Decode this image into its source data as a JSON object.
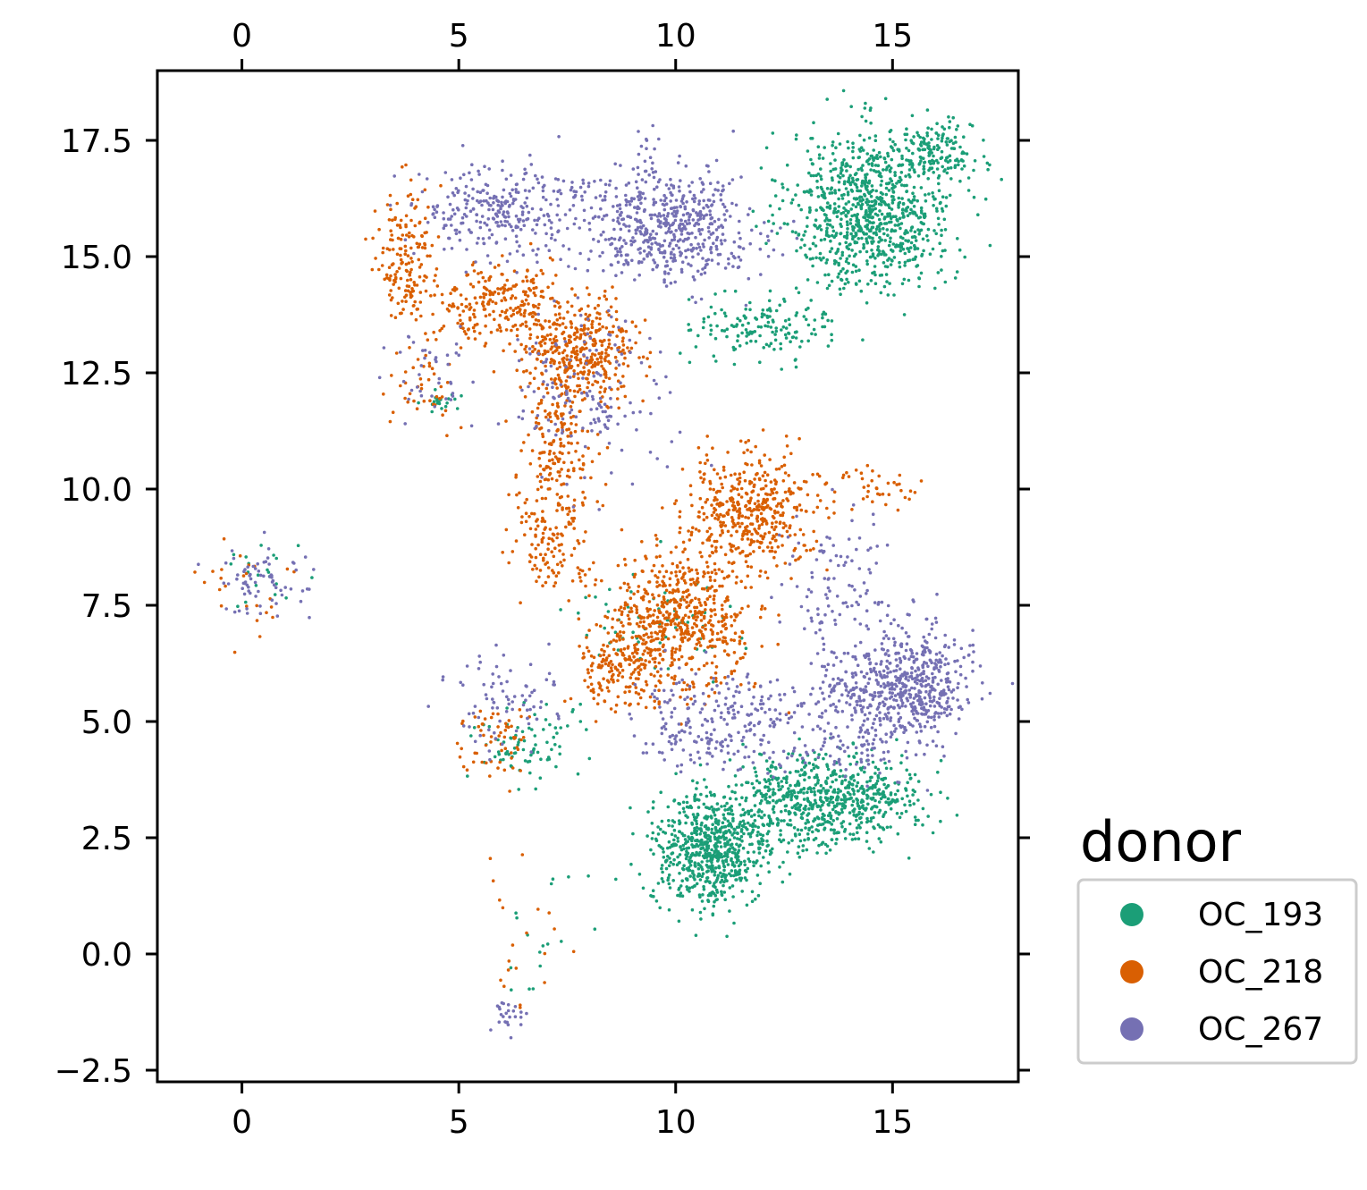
{
  "chart_data": {
    "type": "scatter",
    "title": "",
    "xlabel": "",
    "ylabel": "",
    "xlim": [
      -1.95,
      17.9
    ],
    "ylim": [
      -2.75,
      19.0
    ],
    "x_ticks": [
      0,
      5,
      10,
      15
    ],
    "x_tick_labels": [
      "0",
      "5",
      "10",
      "15"
    ],
    "y_ticks": [
      -2.5,
      0.0,
      2.5,
      5.0,
      7.5,
      10.0,
      12.5,
      15.0,
      17.5
    ],
    "y_tick_labels": [
      "−2.5",
      "0.0",
      "2.5",
      "5.0",
      "7.5",
      "10.0",
      "12.5",
      "15.0",
      "17.5"
    ],
    "grid": false,
    "ticks_on_all_sides": true,
    "legend": {
      "title": "donor",
      "placement": "outside-right"
    },
    "series": [
      {
        "name": "OC_193",
        "color": "#1b9e77",
        "clusters": [
          {
            "cx": 14.5,
            "cy": 16.0,
            "sx": 1.1,
            "sy": 1.0,
            "n": 900
          },
          {
            "cx": 16.0,
            "cy": 17.2,
            "sx": 0.5,
            "sy": 0.4,
            "n": 150
          },
          {
            "cx": 12.0,
            "cy": 13.5,
            "sx": 0.9,
            "sy": 0.4,
            "n": 150
          },
          {
            "cx": 10.8,
            "cy": 2.2,
            "sx": 0.8,
            "sy": 0.7,
            "n": 650
          },
          {
            "cx": 13.0,
            "cy": 3.2,
            "sx": 1.3,
            "sy": 0.6,
            "n": 550
          },
          {
            "cx": 14.5,
            "cy": 3.5,
            "sx": 0.8,
            "sy": 0.5,
            "n": 180
          },
          {
            "cx": 6.5,
            "cy": 4.5,
            "sx": 0.7,
            "sy": 0.5,
            "n": 80
          },
          {
            "cx": 4.6,
            "cy": 11.9,
            "sx": 0.3,
            "sy": 0.2,
            "n": 20
          },
          {
            "cx": 0.5,
            "cy": 8.3,
            "sx": 0.5,
            "sy": 0.5,
            "n": 20
          },
          {
            "cx": 6.6,
            "cy": 0.8,
            "sx": 0.5,
            "sy": 1.0,
            "n": 15
          },
          {
            "cx": 9.5,
            "cy": 7.0,
            "sx": 1.2,
            "sy": 0.8,
            "n": 60
          }
        ]
      },
      {
        "name": "OC_218",
        "color": "#d95f02",
        "clusters": [
          {
            "cx": 3.8,
            "cy": 15.0,
            "sx": 0.4,
            "sy": 0.9,
            "n": 170
          },
          {
            "cx": 5.8,
            "cy": 14.0,
            "sx": 0.8,
            "sy": 0.5,
            "n": 220
          },
          {
            "cx": 7.8,
            "cy": 13.0,
            "sx": 0.8,
            "sy": 0.6,
            "n": 420
          },
          {
            "cx": 7.3,
            "cy": 10.8,
            "sx": 0.5,
            "sy": 0.9,
            "n": 200
          },
          {
            "cx": 7.2,
            "cy": 8.7,
            "sx": 0.6,
            "sy": 0.5,
            "n": 100
          },
          {
            "cx": 11.7,
            "cy": 9.5,
            "sx": 0.9,
            "sy": 0.7,
            "n": 450
          },
          {
            "cx": 10.2,
            "cy": 7.2,
            "sx": 0.9,
            "sy": 0.9,
            "n": 550
          },
          {
            "cx": 8.8,
            "cy": 6.3,
            "sx": 0.6,
            "sy": 0.6,
            "n": 200
          },
          {
            "cx": 5.8,
            "cy": 4.5,
            "sx": 0.5,
            "sy": 0.5,
            "n": 60
          },
          {
            "cx": 14.5,
            "cy": 10.0,
            "sx": 0.7,
            "sy": 0.3,
            "n": 40
          },
          {
            "cx": 0.0,
            "cy": 8.0,
            "sx": 0.6,
            "sy": 0.6,
            "n": 25
          },
          {
            "cx": 6.4,
            "cy": 0.4,
            "sx": 0.5,
            "sy": 1.0,
            "n": 20
          },
          {
            "cx": 4.2,
            "cy": 12.2,
            "sx": 0.5,
            "sy": 0.5,
            "n": 40
          }
        ]
      },
      {
        "name": "OC_267",
        "color": "#7570b3",
        "clusters": [
          {
            "cx": 6.0,
            "cy": 16.0,
            "sx": 1.2,
            "sy": 0.6,
            "n": 300
          },
          {
            "cx": 9.8,
            "cy": 15.6,
            "sx": 1.2,
            "sy": 0.7,
            "n": 550
          },
          {
            "cx": 15.6,
            "cy": 5.8,
            "sx": 0.7,
            "sy": 0.7,
            "n": 400
          },
          {
            "cx": 14.3,
            "cy": 5.4,
            "sx": 0.8,
            "sy": 0.8,
            "n": 300
          },
          {
            "cx": 11.0,
            "cy": 5.0,
            "sx": 1.2,
            "sy": 0.6,
            "n": 250
          },
          {
            "cx": 13.8,
            "cy": 8.0,
            "sx": 0.7,
            "sy": 0.8,
            "n": 100
          },
          {
            "cx": 6.0,
            "cy": 5.5,
            "sx": 0.8,
            "sy": 0.6,
            "n": 80
          },
          {
            "cx": 8.0,
            "cy": 12.0,
            "sx": 1.0,
            "sy": 1.0,
            "n": 150
          },
          {
            "cx": 0.4,
            "cy": 8.0,
            "sx": 0.6,
            "sy": 0.5,
            "n": 70
          },
          {
            "cx": 9.4,
            "cy": 17.3,
            "sx": 0.3,
            "sy": 0.4,
            "n": 15
          },
          {
            "cx": 6.1,
            "cy": -1.3,
            "sx": 0.4,
            "sy": 0.2,
            "n": 25
          },
          {
            "cx": 4.3,
            "cy": 12.5,
            "sx": 0.6,
            "sy": 0.6,
            "n": 40
          }
        ]
      }
    ]
  }
}
